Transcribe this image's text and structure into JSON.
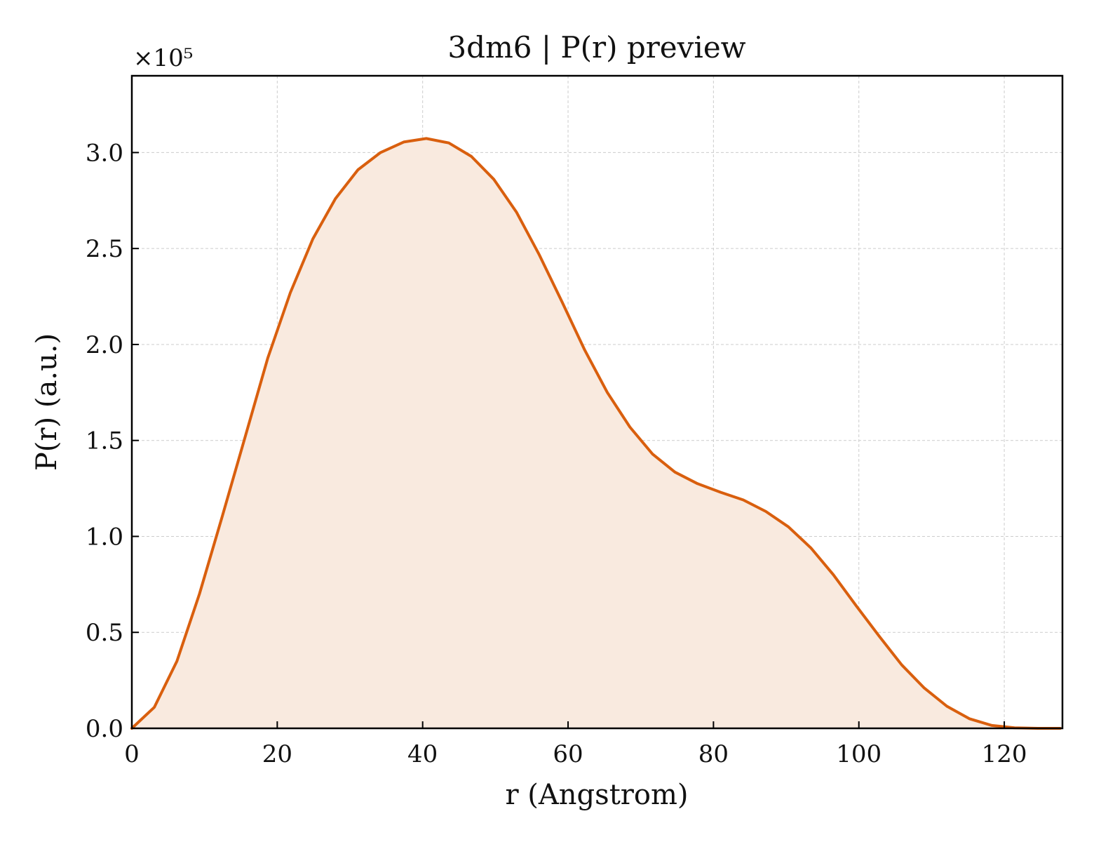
{
  "chart_data": {
    "type": "area",
    "title": "3dm6 | P(r) preview",
    "xlabel": "r (Angstrom)",
    "ylabel": "P(r) (a.u.)",
    "y_scale_label": "×10⁵",
    "y_multiplier": 100000,
    "xlim": [
      0,
      128
    ],
    "ylim": [
      0,
      3.4
    ],
    "xticks": [
      {
        "value": 0,
        "label": "0"
      },
      {
        "value": 20,
        "label": "20"
      },
      {
        "value": 40,
        "label": "40"
      },
      {
        "value": 60,
        "label": "60"
      },
      {
        "value": 80,
        "label": "80"
      },
      {
        "value": 100,
        "label": "100"
      },
      {
        "value": 120,
        "label": "120"
      }
    ],
    "yticks": [
      {
        "value": 0.0,
        "label": "0.0"
      },
      {
        "value": 0.5,
        "label": "0.5"
      },
      {
        "value": 1.0,
        "label": "1.0"
      },
      {
        "value": 1.5,
        "label": "1.5"
      },
      {
        "value": 2.0,
        "label": "2.0"
      },
      {
        "value": 2.5,
        "label": "2.5"
      },
      {
        "value": 3.0,
        "label": "3.0"
      }
    ],
    "grid": true,
    "colors": {
      "line": "#d95f0e",
      "fill": "#f9eadf",
      "grid": "#cccccc",
      "axis": "#000000"
    },
    "series": [
      {
        "x": [
          0,
          3.1,
          6.2,
          9.3,
          12.4,
          15.6,
          18.7,
          21.8,
          24.9,
          28.0,
          31.1,
          34.2,
          37.4,
          40.5,
          43.6,
          46.7,
          49.8,
          52.9,
          56.0,
          59.2,
          62.3,
          65.4,
          68.5,
          71.6,
          74.7,
          77.8,
          81.0,
          84.1,
          87.2,
          90.3,
          93.4,
          96.5,
          99.6,
          102.8,
          105.9,
          109.0,
          112.1,
          115.2,
          118.3,
          121.4,
          124.6,
          127.7
        ],
        "y": [
          0.0,
          0.11,
          0.35,
          0.7,
          1.1,
          1.52,
          1.93,
          2.27,
          2.55,
          2.76,
          2.91,
          3.0,
          3.055,
          3.073,
          3.05,
          2.98,
          2.86,
          2.69,
          2.47,
          2.22,
          1.97,
          1.75,
          1.57,
          1.43,
          1.335,
          1.275,
          1.23,
          1.19,
          1.13,
          1.05,
          0.94,
          0.8,
          0.64,
          0.48,
          0.33,
          0.21,
          0.115,
          0.05,
          0.015,
          0.003,
          0.0,
          0.0
        ]
      }
    ]
  }
}
